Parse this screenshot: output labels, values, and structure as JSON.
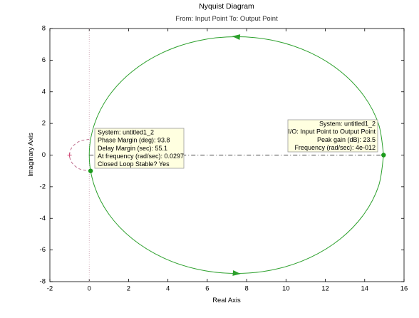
{
  "chart_data": {
    "type": "line",
    "title": "Nyquist Diagram",
    "subtitle": "From: Input Point  To: Output Point",
    "x_label": "Real Axis",
    "y_label": "Imaginary Axis",
    "xlim": [
      -2,
      16
    ],
    "ylim": [
      -8,
      8
    ],
    "xticks": [
      -2,
      0,
      2,
      4,
      6,
      8,
      10,
      12,
      14,
      16
    ],
    "yticks": [
      -8,
      -6,
      -4,
      -2,
      0,
      2,
      4,
      6,
      8
    ],
    "series": [
      {
        "color": "#2ca02c",
        "style": "solid",
        "x": [
          14.96,
          14.71,
          13.96,
          12.77,
          11.22,
          9.42,
          7.48,
          5.54,
          3.74,
          2.19,
          1.0,
          0.26,
          0,
          0.26,
          1.0,
          2.19,
          3.74,
          5.54,
          7.48,
          9.42,
          11.22,
          12.77,
          13.96,
          14.71,
          14.96
        ],
        "values": [
          0,
          -1.94,
          -3.74,
          -5.29,
          -6.48,
          -7.23,
          -7.48,
          -7.23,
          -6.48,
          -5.29,
          -3.74,
          -1.94,
          0,
          1.94,
          3.74,
          5.29,
          6.48,
          7.23,
          7.48,
          7.23,
          6.48,
          5.29,
          3.74,
          1.94,
          0
        ]
      },
      {
        "color": "#c07090",
        "style": "dashed",
        "x": [
          0,
          -0.5,
          -0.87,
          -1,
          -0.87,
          -0.5,
          0
        ],
        "values": [
          1,
          0.87,
          0.5,
          0,
          -0.5,
          -0.87,
          -1
        ]
      },
      {
        "color": "#404040",
        "style": "dashdot",
        "x": [
          0,
          14.96
        ],
        "values": [
          0,
          0
        ]
      }
    ],
    "critical_point": {
      "x": -1,
      "y": 0,
      "color": "#d04070"
    },
    "datatips": [
      {
        "x": 0.07,
        "y": -1,
        "color": "#1a9a1a",
        "align": "left",
        "lines": [
          "System: untitled1_2",
          "Phase Margin (deg): 93.8",
          "Delay Margin (sec): 55.1",
          "At frequency (rad/sec): 0.0297",
          "Closed Loop Stable? Yes"
        ]
      },
      {
        "x": 14.96,
        "y": 0,
        "color": "#1a9a1a",
        "align": "right",
        "lines": [
          "System: untitled1_2",
          "I/O: Input Point to Output Point",
          "Peak gain (dB): 23.5",
          "Frequency (rad/sec): 4e-012"
        ]
      }
    ]
  }
}
